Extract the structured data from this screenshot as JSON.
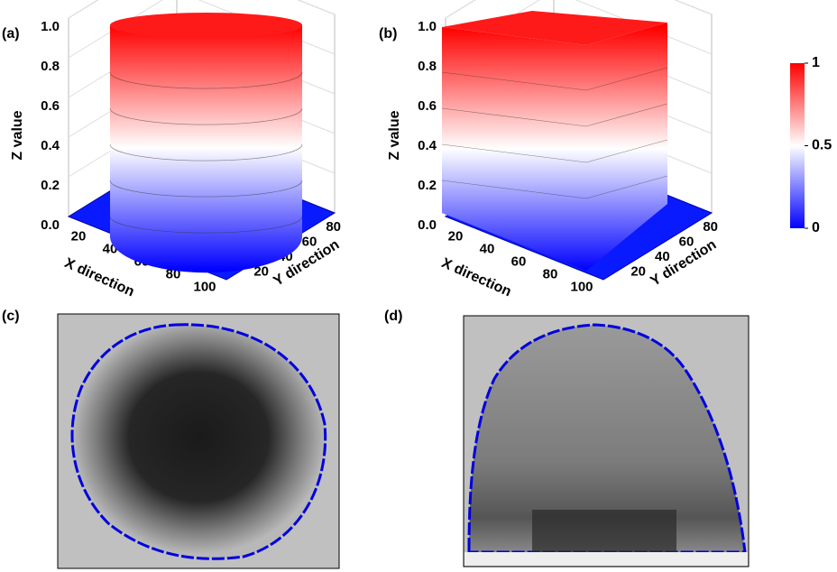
{
  "chart_data": [
    {
      "type": "surface",
      "label": "(a)",
      "zlabel": "Z value",
      "xlabel": "X direction",
      "ylabel": "Y direction",
      "zlim": [
        0,
        1
      ],
      "zticks": [
        {
          "value": 0,
          "label": "0.0"
        },
        {
          "value": 0.2,
          "label": "0.2"
        },
        {
          "value": 0.4,
          "label": "0.4"
        },
        {
          "value": 0.6,
          "label": "0.6"
        },
        {
          "value": 0.8,
          "label": "0.8"
        },
        {
          "value": 1,
          "label": "1.0"
        }
      ],
      "xlim": [
        8,
        108
      ],
      "xticks": [
        20,
        40,
        60,
        80,
        100
      ],
      "ylim": [
        0,
        90
      ],
      "yticks": [
        20,
        40,
        60,
        80
      ],
      "shape": "cylinder"
    },
    {
      "type": "surface",
      "label": "(b)",
      "zlabel": "Z value",
      "xlabel": "X direction",
      "ylabel": "Y direction",
      "zlim": [
        0,
        1
      ],
      "zticks": [
        {
          "value": 0,
          "label": "0.0"
        },
        {
          "value": 0.2,
          "label": "0.2"
        },
        {
          "value": 0.4,
          "label": "0.4"
        },
        {
          "value": 0.6,
          "label": "0.6"
        },
        {
          "value": 0.8,
          "label": "0.8"
        },
        {
          "value": 1,
          "label": "1.0"
        }
      ],
      "xlim": [
        8,
        108
      ],
      "xticks": [
        20,
        40,
        60,
        80,
        100
      ],
      "ylim": [
        0,
        90
      ],
      "yticks": [
        20,
        40,
        60,
        80
      ],
      "shape": "box"
    }
  ],
  "colorbar": {
    "lim": [
      0,
      1
    ],
    "ticks": [
      0,
      0.5,
      1
    ],
    "colors": [
      "#0000ff",
      "#ffffff",
      "#ff0000"
    ]
  },
  "images": [
    {
      "label": "(c)"
    },
    {
      "label": "(d)"
    }
  ]
}
